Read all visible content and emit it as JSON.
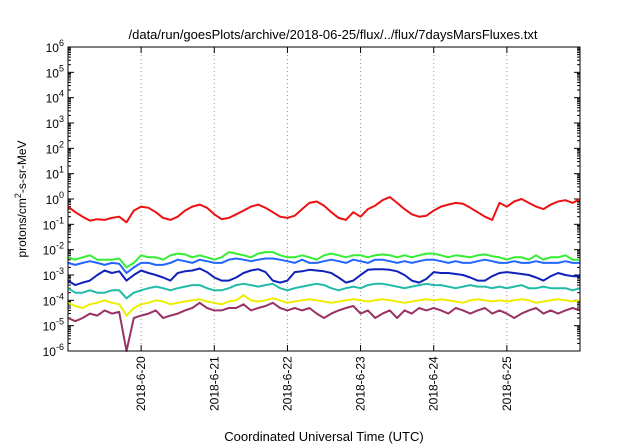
{
  "chart_data": {
    "type": "line",
    "title": "/data/run/goesPlots/archive/2018-06-25/flux/../flux/7daysMarsFluxes.txt",
    "xlabel": "Coordinated Universal Time (UTC)",
    "ylabel": {
      "prefix": "protons/cm",
      "sup": "2",
      "suffix": "-s-sr-MeV"
    },
    "y_scale": "log",
    "ylim_exponents": [
      -6,
      6
    ],
    "y_tick_base": "10",
    "y_tick_exponents": [
      "-6",
      "-5",
      "-4",
      "-3",
      "-2",
      "-1",
      "0",
      "1",
      "2",
      "3",
      "4",
      "5",
      "6"
    ],
    "xlim": [
      "2018-06-19 00:00",
      "2018-06-26 00:00"
    ],
    "x_ticks": [
      "2018-6-20",
      "2018-6-21",
      "2018-6-22",
      "2018-6-23",
      "2018-6-24",
      "2018-6-25"
    ],
    "grid": true,
    "legend": "none",
    "x_day": [
      0,
      0.1,
      0.2,
      0.3,
      0.4,
      0.5,
      0.6,
      0.7,
      0.8,
      0.9,
      1,
      1.1,
      1.2,
      1.3,
      1.4,
      1.5,
      1.6,
      1.7,
      1.8,
      1.9,
      2,
      2.1,
      2.2,
      2.3,
      2.4,
      2.5,
      2.6,
      2.7,
      2.8,
      2.9,
      3,
      3.1,
      3.2,
      3.3,
      3.4,
      3.5,
      3.6,
      3.7,
      3.8,
      3.9,
      4,
      4.1,
      4.2,
      4.3,
      4.4,
      4.5,
      4.6,
      4.7,
      4.8,
      4.9,
      5,
      5.1,
      5.2,
      5.3,
      5.4,
      5.5,
      5.6,
      5.7,
      5.8,
      5.9,
      6,
      6.1,
      6.2,
      6.3,
      6.4,
      6.5,
      6.6,
      6.7,
      6.8,
      6.9,
      7
    ],
    "series": [
      {
        "color": "#ee1111",
        "values": [
          0.5,
          0.3,
          0.2,
          0.14,
          0.16,
          0.15,
          0.18,
          0.2,
          0.12,
          0.35,
          0.5,
          0.45,
          0.3,
          0.18,
          0.15,
          0.2,
          0.35,
          0.5,
          0.6,
          0.45,
          0.25,
          0.16,
          0.18,
          0.25,
          0.35,
          0.5,
          0.6,
          0.45,
          0.3,
          0.2,
          0.18,
          0.22,
          0.4,
          0.7,
          0.8,
          0.55,
          0.3,
          0.18,
          0.15,
          0.3,
          0.2,
          0.4,
          0.55,
          0.9,
          1.2,
          0.7,
          0.4,
          0.25,
          0.2,
          0.22,
          0.35,
          0.5,
          0.6,
          0.7,
          0.65,
          0.45,
          0.3,
          0.2,
          0.15,
          0.7,
          0.5,
          0.8,
          1.0,
          0.7,
          0.5,
          0.4,
          0.6,
          0.8,
          0.9,
          0.7,
          1.0
        ]
      },
      {
        "color": "#33ee33",
        "values": [
          0.005,
          0.004,
          0.005,
          0.006,
          0.004,
          0.004,
          0.004,
          0.0045,
          0.002,
          0.003,
          0.006,
          0.005,
          0.005,
          0.004,
          0.006,
          0.007,
          0.0065,
          0.005,
          0.006,
          0.005,
          0.004,
          0.005,
          0.008,
          0.007,
          0.006,
          0.005,
          0.007,
          0.008,
          0.008,
          0.006,
          0.005,
          0.005,
          0.006,
          0.005,
          0.004,
          0.006,
          0.007,
          0.006,
          0.005,
          0.006,
          0.006,
          0.005,
          0.006,
          0.0065,
          0.006,
          0.005,
          0.006,
          0.005,
          0.006,
          0.007,
          0.007,
          0.006,
          0.005,
          0.006,
          0.0055,
          0.005,
          0.006,
          0.0065,
          0.0055,
          0.005,
          0.004,
          0.005,
          0.005,
          0.004,
          0.006,
          0.004,
          0.005,
          0.005,
          0.006,
          0.004,
          0.004
        ]
      },
      {
        "color": "#2266ff",
        "values": [
          0.003,
          0.0025,
          0.003,
          0.0035,
          0.003,
          0.0025,
          0.003,
          0.0028,
          0.0012,
          0.002,
          0.003,
          0.003,
          0.0025,
          0.0025,
          0.003,
          0.004,
          0.0035,
          0.003,
          0.004,
          0.0035,
          0.003,
          0.003,
          0.004,
          0.0045,
          0.004,
          0.0035,
          0.004,
          0.0045,
          0.0045,
          0.004,
          0.0035,
          0.003,
          0.004,
          0.003,
          0.003,
          0.0035,
          0.004,
          0.0035,
          0.003,
          0.004,
          0.0035,
          0.003,
          0.004,
          0.004,
          0.0035,
          0.003,
          0.0035,
          0.003,
          0.0035,
          0.004,
          0.004,
          0.0035,
          0.003,
          0.0035,
          0.003,
          0.003,
          0.0035,
          0.004,
          0.0035,
          0.003,
          0.003,
          0.0035,
          0.003,
          0.003,
          0.0035,
          0.003,
          0.003,
          0.003,
          0.0035,
          0.003,
          0.003
        ]
      },
      {
        "color": "#1122bb",
        "values": [
          0.0006,
          0.0004,
          0.0005,
          0.0006,
          0.001,
          0.0015,
          0.0012,
          0.0014,
          0.0006,
          0.001,
          0.0015,
          0.0012,
          0.001,
          0.0008,
          0.0006,
          0.0012,
          0.0014,
          0.0015,
          0.0018,
          0.0013,
          0.0008,
          0.0006,
          0.0006,
          0.0008,
          0.0012,
          0.0015,
          0.0017,
          0.0013,
          0.0006,
          0.0005,
          0.0006,
          0.0013,
          0.0014,
          0.0016,
          0.0015,
          0.0014,
          0.0012,
          0.0008,
          0.0005,
          0.0006,
          0.001,
          0.0016,
          0.0017,
          0.0017,
          0.0016,
          0.0014,
          0.001,
          0.0006,
          0.0005,
          0.0007,
          0.0013,
          0.0012,
          0.0012,
          0.0011,
          0.001,
          0.0008,
          0.0006,
          0.0006,
          0.0009,
          0.0012,
          0.0013,
          0.0012,
          0.0011,
          0.001,
          0.0008,
          0.0006,
          0.0009,
          0.0012,
          0.001,
          0.0009,
          0.0009
        ]
      },
      {
        "color": "#22bbaa",
        "values": [
          0.0003,
          0.0002,
          0.0002,
          0.00025,
          0.0002,
          0.0002,
          0.00025,
          0.00025,
          0.00012,
          0.0002,
          0.00025,
          0.0003,
          0.00035,
          0.0003,
          0.00025,
          0.0003,
          0.00035,
          0.0004,
          0.0004,
          0.0003,
          0.00025,
          0.00025,
          0.0003,
          0.0004,
          0.00045,
          0.0004,
          0.00035,
          0.0004,
          0.00045,
          0.0003,
          0.00025,
          0.0003,
          0.00035,
          0.0004,
          0.00045,
          0.0004,
          0.0003,
          0.00025,
          0.0003,
          0.00035,
          0.0003,
          0.0004,
          0.00045,
          0.00045,
          0.0004,
          0.00035,
          0.0003,
          0.00035,
          0.0004,
          0.00045,
          0.0004,
          0.0004,
          0.00035,
          0.0003,
          0.00035,
          0.0004,
          0.00035,
          0.00035,
          0.0003,
          0.00035,
          0.0003,
          0.00035,
          0.0004,
          0.0003,
          0.0003,
          0.00035,
          0.0003,
          0.0003,
          0.0003,
          0.00025,
          0.0003
        ]
      },
      {
        "color": "#eeee00",
        "values": [
          8e-05,
          6e-05,
          5e-05,
          7e-05,
          8e-05,
          0.0001,
          8e-05,
          7e-05,
          2.5e-05,
          5e-05,
          7e-05,
          8e-05,
          0.0001,
          9e-05,
          7e-05,
          8e-05,
          9e-05,
          0.0001,
          0.00011,
          9e-05,
          8e-05,
          7e-05,
          9e-05,
          0.0001,
          0.00016,
          0.0001,
          9e-05,
          0.0001,
          0.00012,
          0.0001,
          8e-05,
          9e-05,
          0.0001,
          0.00011,
          0.0001,
          9e-05,
          8e-05,
          9e-05,
          0.0001,
          0.00011,
          0.0001,
          9e-05,
          0.0001,
          0.00011,
          0.0001,
          9e-05,
          8e-05,
          9e-05,
          0.0001,
          0.00011,
          0.0001,
          0.00011,
          0.0001,
          9e-05,
          8e-05,
          0.0001,
          0.00011,
          0.0001,
          9e-05,
          0.0001,
          9e-05,
          0.0001,
          0.00011,
          0.0001,
          8e-05,
          9e-05,
          0.0001,
          0.00011,
          0.0001,
          9e-05,
          0.0001
        ]
      },
      {
        "color": "#993366",
        "values": [
          2e-05,
          1.5e-05,
          2e-05,
          3e-05,
          2.5e-05,
          4e-05,
          3e-05,
          3.5e-05,
          1e-06,
          2e-05,
          2.5e-05,
          3e-05,
          4e-05,
          2e-05,
          2.5e-05,
          3e-05,
          4e-05,
          5e-05,
          8e-05,
          5e-05,
          4e-05,
          4e-05,
          5e-05,
          5e-05,
          7e-05,
          4e-05,
          5e-05,
          6e-05,
          8e-05,
          5e-05,
          4e-05,
          5e-05,
          4e-05,
          5e-05,
          3e-05,
          2e-05,
          3e-05,
          4e-05,
          5e-05,
          6e-05,
          3e-05,
          4e-05,
          2e-05,
          3e-05,
          4e-05,
          2e-05,
          4e-05,
          3e-05,
          5e-05,
          4e-05,
          5e-05,
          4e-05,
          3e-05,
          5e-05,
          4e-05,
          3e-05,
          4e-05,
          5e-05,
          3e-05,
          4e-05,
          3e-05,
          2e-05,
          3e-05,
          4e-05,
          5e-05,
          3e-05,
          4e-05,
          3e-05,
          4e-05,
          5e-05,
          4e-05
        ]
      }
    ]
  }
}
